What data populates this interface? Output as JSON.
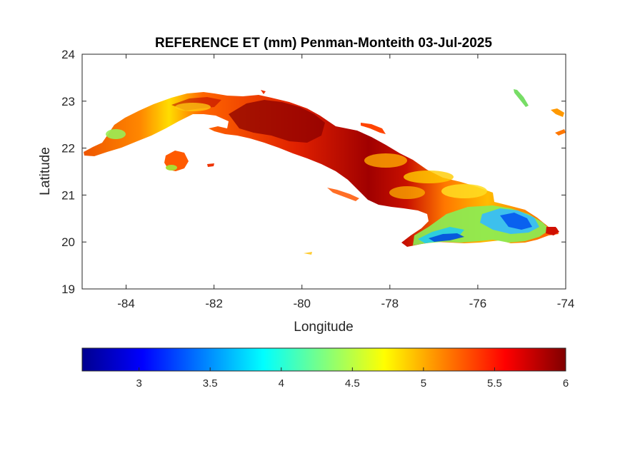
{
  "chart_data": {
    "type": "heatmap",
    "title": "REFERENCE ET (mm) Penman-Monteith 03-Jul-2025",
    "xlabel": "Longitude",
    "ylabel": "Latitude",
    "xlim": [
      -85,
      -74
    ],
    "ylim": [
      19,
      24
    ],
    "x_ticks": [
      "-84",
      "-82",
      "-80",
      "-78",
      "-76",
      "-74"
    ],
    "y_ticks": [
      "19",
      "20",
      "21",
      "22",
      "23",
      "24"
    ],
    "colormap": "jet",
    "color_limits": [
      2.6,
      6.0
    ],
    "colorbar_ticks": [
      "3",
      "3.5",
      "4",
      "4.5",
      "5",
      "5.5",
      "6"
    ],
    "colorbar_position": "bottom",
    "region": "Cuba",
    "value_zones": [
      {
        "zone": "far west tip",
        "lon": [
          -85.0,
          -84.3
        ],
        "lat": [
          21.8,
          22.1
        ],
        "value": 5.6
      },
      {
        "zone": "west coast patch",
        "lon": [
          -84.4,
          -84.0
        ],
        "lat": [
          22.1,
          22.4
        ],
        "value": 4.6
      },
      {
        "zone": "northwest",
        "lon": [
          -83.8,
          -81.5
        ],
        "lat": [
          22.4,
          23.1
        ],
        "value": 5.5
      },
      {
        "zone": "central north",
        "lon": [
          -81.5,
          -79.5
        ],
        "lat": [
          22.0,
          23.0
        ],
        "value": 5.9
      },
      {
        "zone": "central",
        "lon": [
          -79.5,
          -77.5
        ],
        "lat": [
          21.2,
          22.3
        ],
        "value": 5.3
      },
      {
        "zone": "east central",
        "lon": [
          -77.5,
          -75.5
        ],
        "lat": [
          20.6,
          21.3
        ],
        "value": 5.0
      },
      {
        "zone": "Sierra Maestra",
        "lon": [
          -77.5,
          -76.0
        ],
        "lat": [
          19.9,
          20.3
        ],
        "value": 3.6
      },
      {
        "zone": "far east highlands",
        "lon": [
          -75.8,
          -74.8
        ],
        "lat": [
          20.2,
          20.6
        ],
        "value": 3.4
      },
      {
        "zone": "eastern tip",
        "lon": [
          -74.5,
          -74.2
        ],
        "lat": [
          20.2,
          20.3
        ],
        "value": 5.7
      },
      {
        "zone": "Isla de la Juventud",
        "lon": [
          -83.1,
          -82.6
        ],
        "lat": [
          21.5,
          21.9
        ],
        "value": 5.2
      }
    ]
  }
}
